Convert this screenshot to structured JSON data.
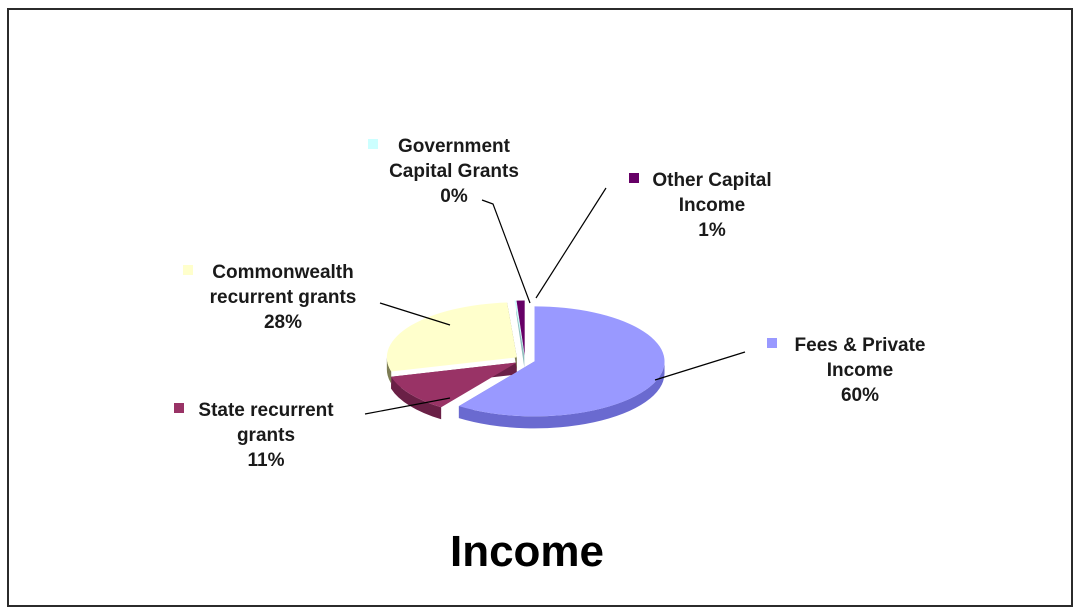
{
  "chart_data": {
    "type": "pie",
    "title": "Income",
    "style": "3d-exploded",
    "slices": [
      {
        "label_lines": [
          "Fees & Private",
          "Income"
        ],
        "percent_label": "60%",
        "value": 60,
        "color": "#9999ff",
        "side": "#6a6ad0"
      },
      {
        "label_lines": [
          "State recurrent",
          "grants"
        ],
        "percent_label": "11%",
        "value": 11,
        "color": "#993366",
        "side": "#6a2046"
      },
      {
        "label_lines": [
          "Commonwealth",
          "recurrent grants"
        ],
        "percent_label": "28%",
        "value": 28,
        "color": "#ffffcc",
        "side": "#7d7d55"
      },
      {
        "label_lines": [
          "Government",
          "Capital Grants"
        ],
        "percent_label": "0%",
        "value": 0.2,
        "color": "#ccffff",
        "side": "#8fbcbc"
      },
      {
        "label_lines": [
          "Other Capital",
          "Income"
        ],
        "percent_label": "1%",
        "value": 1,
        "color": "#660066",
        "side": "#3e003e"
      }
    ]
  }
}
